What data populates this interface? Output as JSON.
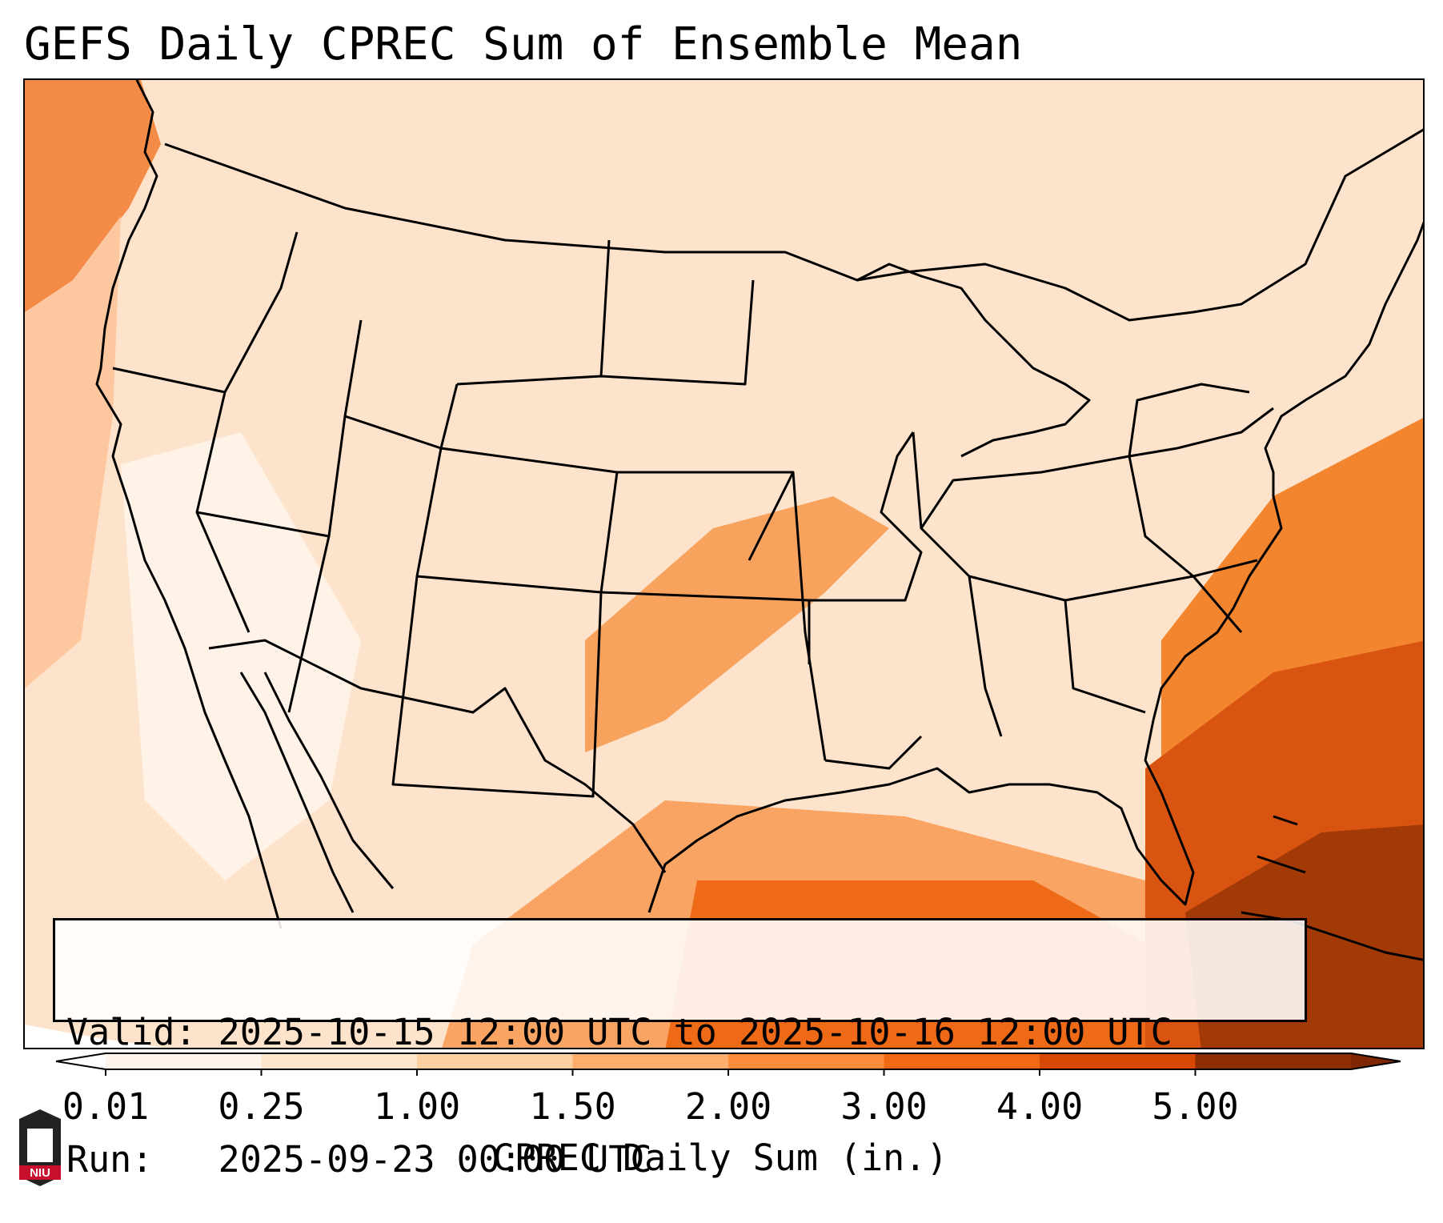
{
  "title": "GEFS Daily CPREC Sum of Ensemble Mean",
  "info": {
    "valid_line": "Valid: 2025-10-15 12:00 UTC to 2025-10-16 12:00 UTC",
    "run_line": "Run:   2025-09-23 00:00 UTC"
  },
  "colorbar": {
    "label": "CPREC Daily Sum (in.)",
    "ticks": [
      "0.01",
      "0.25",
      "1.00",
      "1.50",
      "2.00",
      "3.00",
      "4.00",
      "5.00"
    ],
    "colors": [
      "#fff5eb",
      "#fee6ce",
      "#fdd0a2",
      "#fdae6b",
      "#fd8d3c",
      "#f16913",
      "#d94801",
      "#8c2d04"
    ],
    "under_color": "#ffffff",
    "over_color": "#7f2704",
    "extend": "both"
  },
  "logo": {
    "text": "NIU",
    "colors": {
      "shield": "#222222",
      "band": "#c8102e"
    }
  },
  "map": {
    "projection": "Lambert Conformal, CONUS",
    "boundaries": "coastlines, US state borders, country borders",
    "precip_pattern": "heaviest precipitation over the Gulf of Mexico, Florida and the western Atlantic; a band across Oklahoma, southern Kansas and Missouri; light amounts over the Pacific Northwest and the interior West"
  }
}
